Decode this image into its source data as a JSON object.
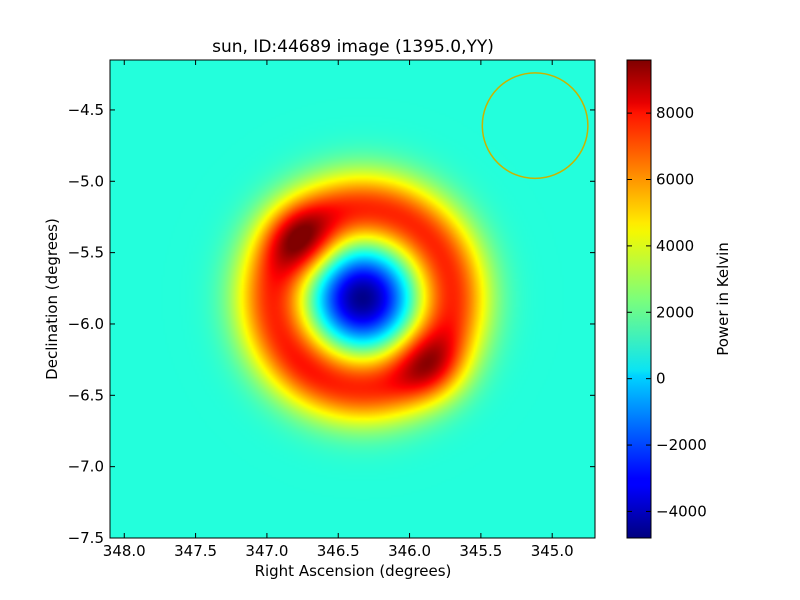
{
  "chart_data": {
    "type": "heatmap",
    "title": "sun, ID:44689 image (1395.0,YY)",
    "xlabel": "Right Ascension (degrees)",
    "ylabel": "Declination (degrees)",
    "xlim": [
      348.1,
      344.7
    ],
    "ylim": [
      -7.5,
      -4.15
    ],
    "x_ticks": [
      348.0,
      347.5,
      347.0,
      346.5,
      346.0,
      345.5,
      345.0
    ],
    "x_tick_labels": [
      "348.0",
      "347.5",
      "347.0",
      "346.5",
      "346.0",
      "345.5",
      "345.0"
    ],
    "y_ticks": [
      -4.5,
      -5.0,
      -5.5,
      -6.0,
      -6.5,
      -7.0,
      -7.5
    ],
    "y_tick_labels": [
      "−4.5",
      "−5.0",
      "−5.5",
      "−6.0",
      "−6.5",
      "−7.0",
      "−7.5"
    ],
    "colorbar": {
      "label": "Power in Kelvin",
      "range": [
        -4800,
        9600
      ],
      "ticks": [
        -4000,
        -2000,
        0,
        2000,
        4000,
        6000,
        8000
      ],
      "tick_labels": [
        "−4000",
        "−2000",
        "0",
        "2000",
        "4000",
        "6000",
        "8000"
      ],
      "colormap": "jet"
    },
    "field": {
      "background_value": 1100,
      "center_ra": 346.33,
      "center_dec": -5.82,
      "dip_min_value": -4700,
      "ring_peak_value": 9400,
      "ring_radius_deg": 0.62,
      "hotspots": [
        {
          "ra": 346.75,
          "dec": -5.42,
          "value": 9400
        },
        {
          "ra": 345.85,
          "dec": -6.3,
          "value": 9000
        },
        {
          "ra": 345.95,
          "dec": -5.4,
          "value": 7400
        },
        {
          "ra": 346.7,
          "dec": -6.25,
          "value": 7600
        }
      ]
    },
    "annotation_circle": {
      "center_ra": 345.12,
      "center_dec": -4.61,
      "radius_deg": 0.37,
      "color": "#c8b400"
    },
    "grid": false
  }
}
